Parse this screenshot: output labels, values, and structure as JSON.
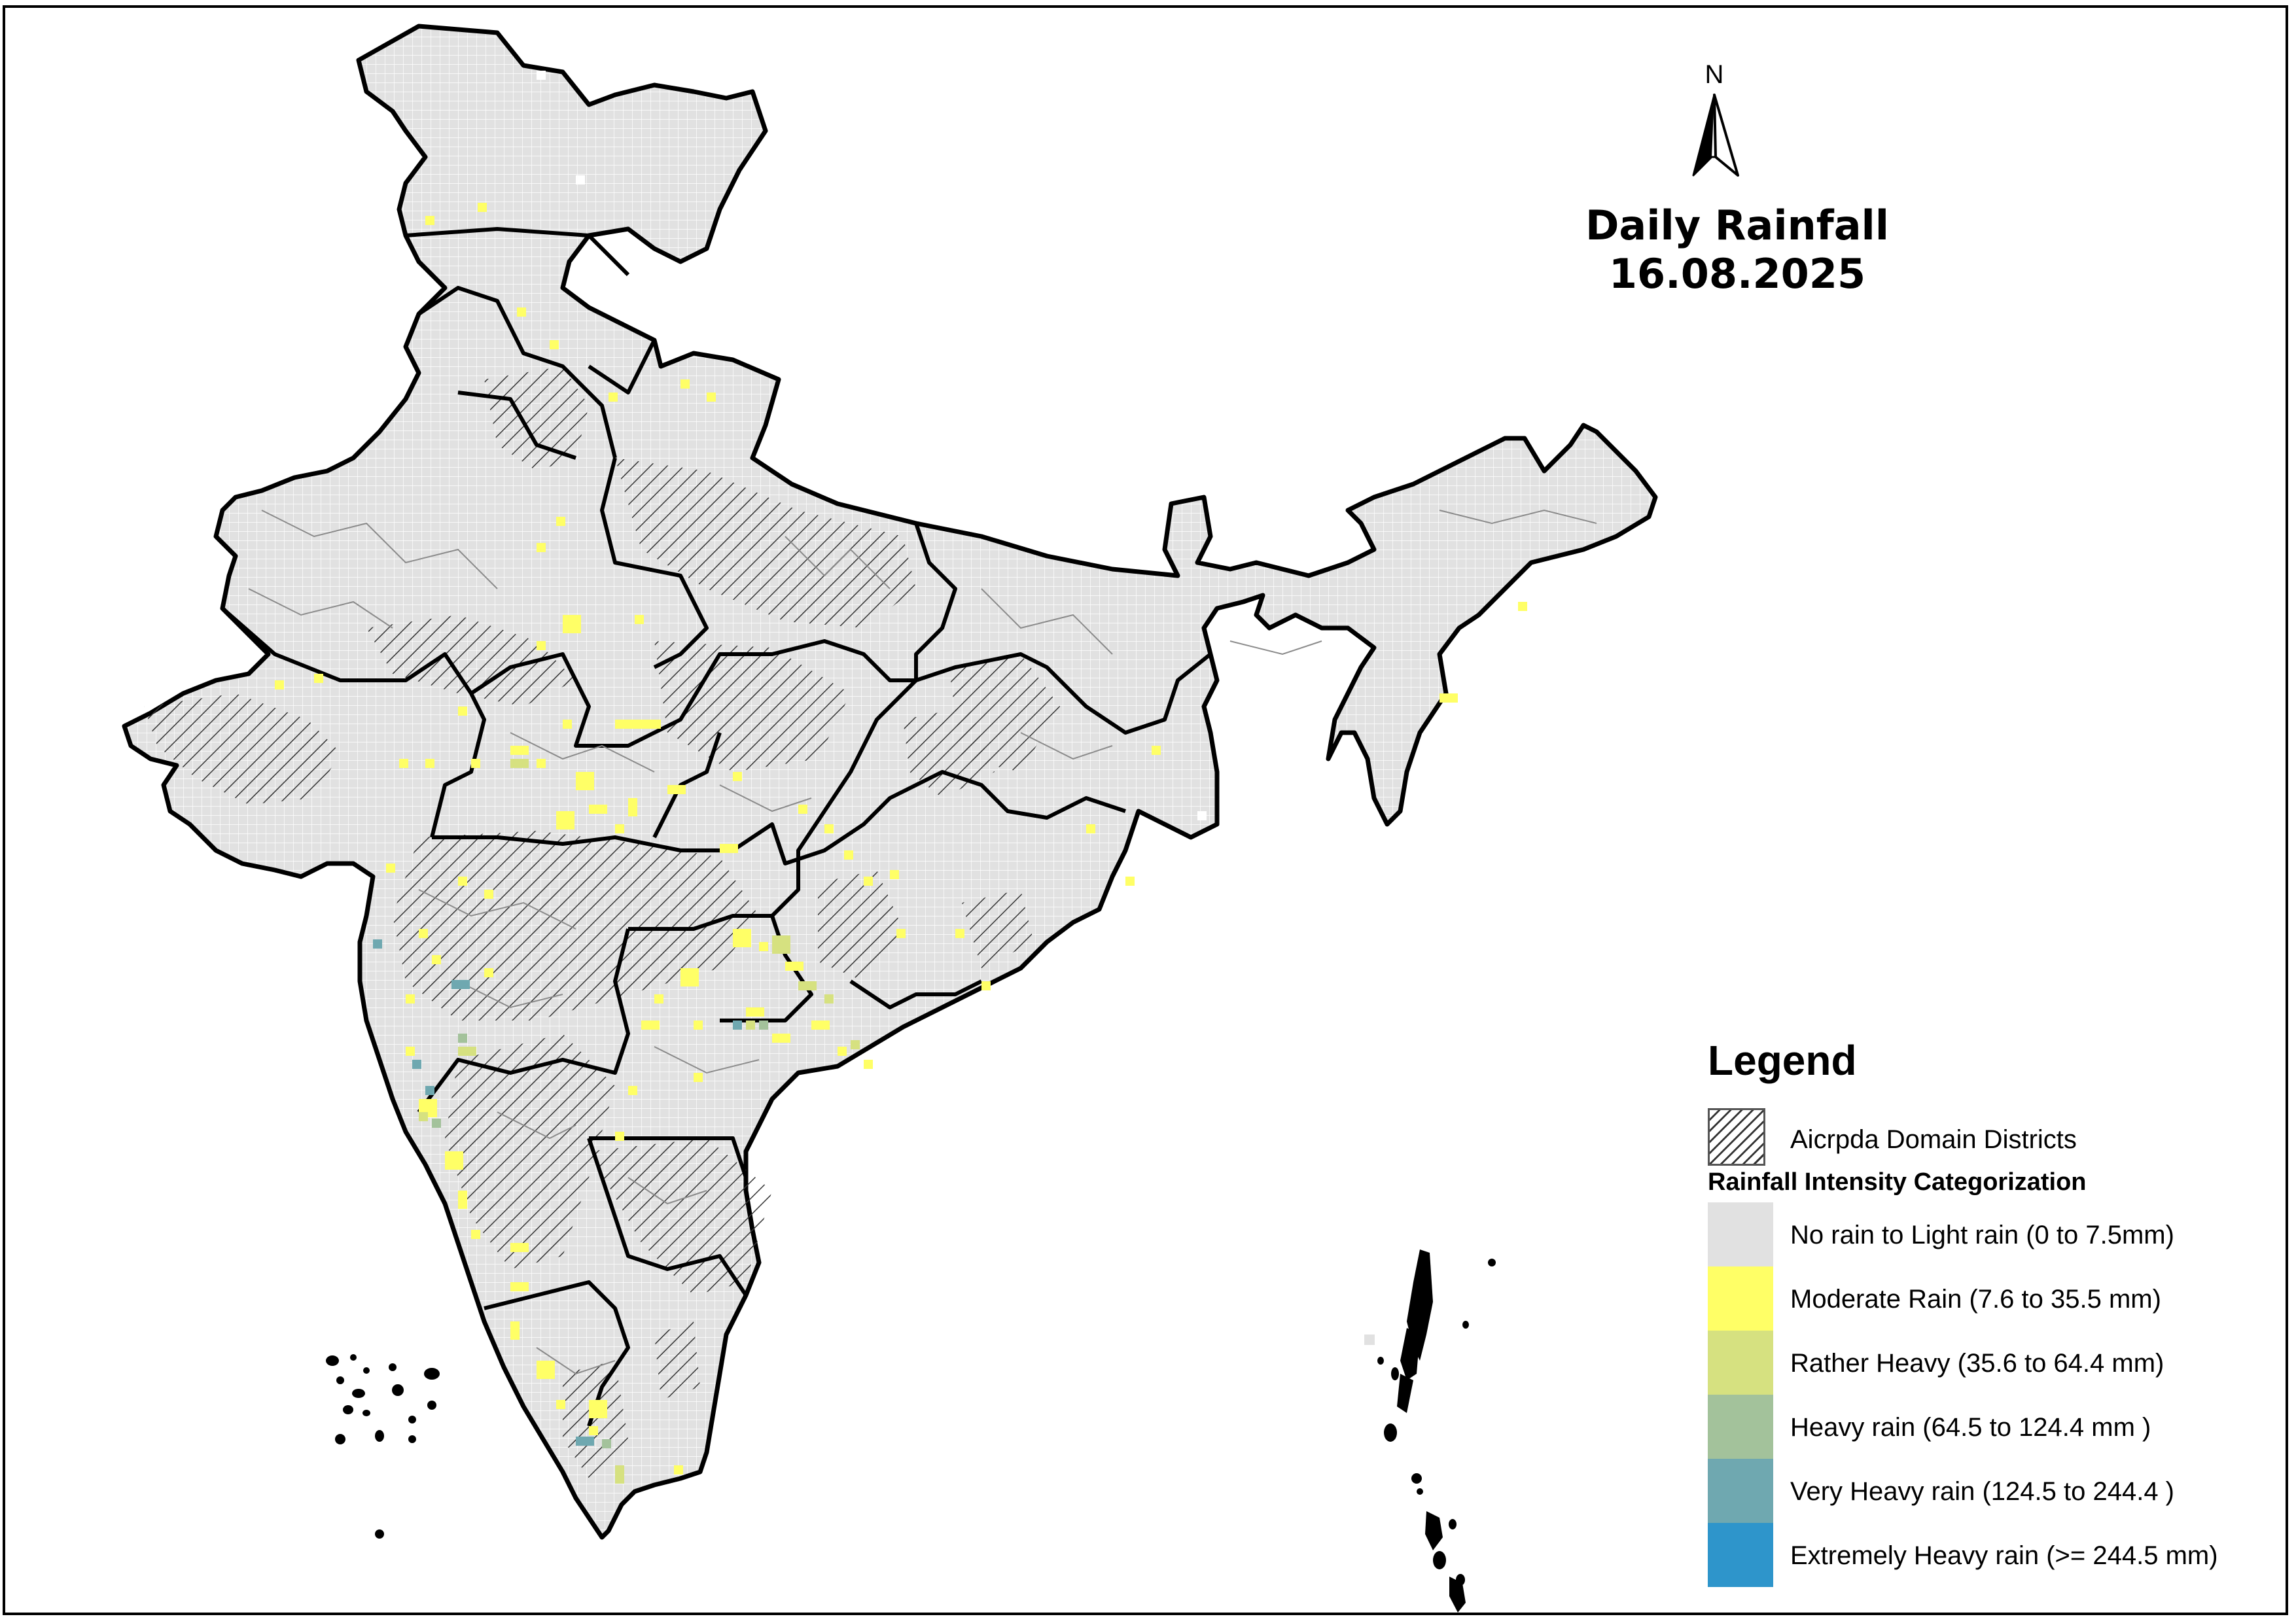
{
  "title": {
    "line1": "Daily Rainfall",
    "line2": "16.08.2025"
  },
  "north_arrow": {
    "letter": "N",
    "icon": "north-arrow-icon"
  },
  "legend": {
    "heading": "Legend",
    "domain_label": "Aicrpda Domain Districts",
    "category_heading": "Rainfall Intensity Categorization",
    "categories": [
      {
        "label": "No rain to Light rain (0 to 7.5mm)",
        "color": "#e1e1e1"
      },
      {
        "label": "Moderate Rain (7.6 to 35.5 mm)",
        "color": "#ffff66"
      },
      {
        "label": "Rather Heavy (35.6 to 64.4 mm)",
        "color": "#d6e180"
      },
      {
        "label": "Heavy rain (64.5 to 124.4 mm )",
        "color": "#a3c29b"
      },
      {
        "label": "Very Heavy rain (124.5 to 244.4 )",
        "color": "#6fa8b0"
      },
      {
        "label": "Extremely Heavy rain  (>= 244.5 mm)",
        "color": "#2e95cb"
      }
    ]
  },
  "colors": {
    "land": "#e1e1e1",
    "state_border": "#000000",
    "district_border": "#8a8a8a",
    "hatch": "#333333"
  }
}
